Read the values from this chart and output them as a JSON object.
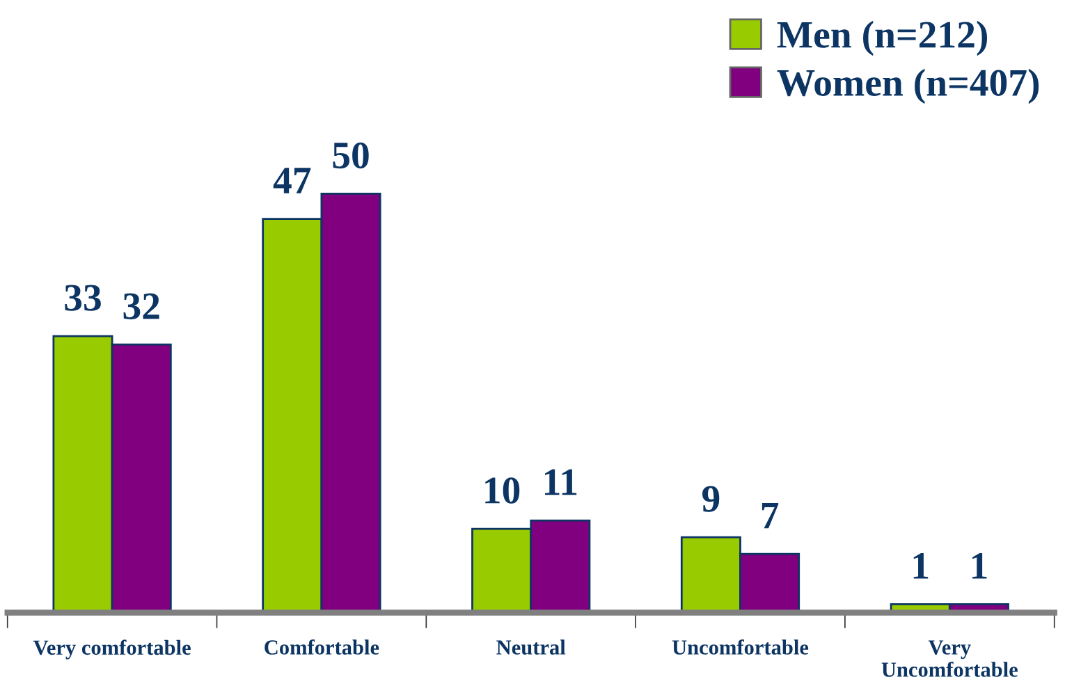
{
  "chart_data": {
    "type": "bar",
    "categories": [
      "Very comfortable",
      "Comfortable",
      "Neutral",
      "Uncomfortable",
      "Very\nUncomfortable"
    ],
    "series": [
      {
        "name": "Men (n=212)",
        "color": "#99cc00",
        "values": [
          33,
          47,
          10,
          9,
          1
        ]
      },
      {
        "name": "Women (n=407)",
        "color": "#800080",
        "values": [
          32,
          50,
          11,
          7,
          1
        ]
      }
    ],
    "data_labels": true,
    "legend": "top right",
    "grid": false,
    "tick_labels": "x"
  }
}
